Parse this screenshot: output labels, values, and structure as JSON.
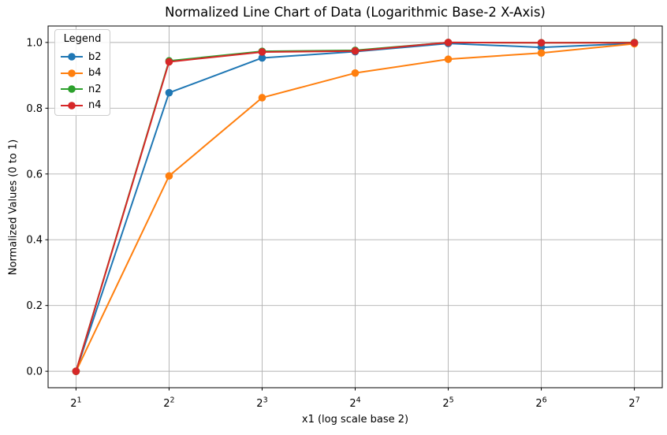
{
  "chart_data": {
    "type": "line",
    "title": "Normalized Line Chart of Data (Logarithmic Base-2 X-Axis)",
    "xlabel": "x1 (log scale base 2)",
    "ylabel": "Normalized Values (0 to 1)",
    "x_scale": "log base 2",
    "x_tick_base": "2",
    "x_tick_exponents": [
      1,
      2,
      3,
      4,
      5,
      6,
      7
    ],
    "x": [
      2,
      4,
      8,
      16,
      32,
      64,
      128
    ],
    "y_ticks": [
      "0.0",
      "0.2",
      "0.4",
      "0.6",
      "0.8",
      "1.0"
    ],
    "ylim": [
      -0.05,
      1.05
    ],
    "xlim_exponents": [
      0.7,
      7.3
    ],
    "grid": true,
    "legend": {
      "title": "Legend",
      "position": "upper left"
    },
    "series": [
      {
        "name": "b2",
        "color": "#1f77b4",
        "values": [
          0.0,
          0.847,
          0.953,
          0.972,
          0.997,
          0.985,
          0.997
        ]
      },
      {
        "name": "b4",
        "color": "#ff7f0e",
        "values": [
          0.0,
          0.594,
          0.832,
          0.907,
          0.949,
          0.968,
          0.996
        ]
      },
      {
        "name": "n2",
        "color": "#2ca02c",
        "values": [
          0.0,
          0.944,
          0.973,
          0.976,
          1.0,
          0.999,
          1.0
        ]
      },
      {
        "name": "n4",
        "color": "#d62728",
        "values": [
          0.0,
          0.941,
          0.971,
          0.974,
          1.0,
          0.999,
          0.999
        ]
      }
    ],
    "colors": {
      "grid": "#b0b0b0",
      "spine": "#000000",
      "background": "#ffffff",
      "text": "#000000"
    }
  }
}
